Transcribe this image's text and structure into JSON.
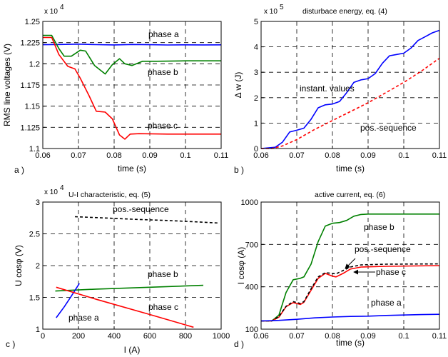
{
  "chart_data": [
    {
      "panel_label": "a )",
      "type": "line",
      "title": "",
      "multiplier": "x 10",
      "multiplier_exp": "4",
      "xlabel": "time (s)",
      "ylabel": "RMS line voltages (V)",
      "xlim": [
        0.06,
        0.11
      ],
      "ylim": [
        1.1,
        1.25
      ],
      "xticks": [
        0.06,
        0.07,
        0.08,
        0.09,
        0.1,
        0.11
      ],
      "xticklabels": [
        "0.06",
        "0.07",
        "0.08",
        "0.09",
        "0.1",
        "0.11"
      ],
      "yticks": [
        1.1,
        1.125,
        1.15,
        1.175,
        1.2,
        1.225,
        1.25
      ],
      "yticklabels": [
        "1.1",
        "1.125",
        "1.15",
        "1.175",
        "1.2",
        "1.225",
        "1.25"
      ],
      "grid": true,
      "series": [
        {
          "name": "phase a",
          "color": "#0000ff",
          "dashed": false,
          "points": [
            [
              0.06,
              1.2225
            ],
            [
              0.065,
              1.2228
            ],
            [
              0.07,
              1.2232
            ],
            [
              0.075,
              1.2226
            ],
            [
              0.08,
              1.2223
            ],
            [
              0.085,
              1.2228
            ],
            [
              0.09,
              1.2225
            ],
            [
              0.095,
              1.2222
            ],
            [
              0.1,
              1.2224
            ],
            [
              0.105,
              1.2223
            ],
            [
              0.11,
              1.2224
            ]
          ]
        },
        {
          "name": "phase b",
          "color": "#008000",
          "dashed": false,
          "points": [
            [
              0.06,
              1.2335
            ],
            [
              0.0625,
              1.2335
            ],
            [
              0.0645,
              1.218
            ],
            [
              0.066,
              1.209
            ],
            [
              0.068,
              1.209
            ],
            [
              0.0705,
              1.216
            ],
            [
              0.072,
              1.215
            ],
            [
              0.0745,
              1.198
            ],
            [
              0.0775,
              1.188
            ],
            [
              0.0795,
              1.199
            ],
            [
              0.0815,
              1.206
            ],
            [
              0.083,
              1.2
            ],
            [
              0.085,
              1.198
            ],
            [
              0.088,
              1.203
            ],
            [
              0.092,
              1.203
            ],
            [
              0.1,
              1.2035
            ],
            [
              0.11,
              1.2035
            ]
          ]
        },
        {
          "name": "phase c",
          "color": "#ff0000",
          "dashed": false,
          "points": [
            [
              0.06,
              1.231
            ],
            [
              0.0625,
              1.231
            ],
            [
              0.0645,
              1.211
            ],
            [
              0.067,
              1.197
            ],
            [
              0.069,
              1.194
            ],
            [
              0.0705,
              1.183
            ],
            [
              0.073,
              1.162
            ],
            [
              0.075,
              1.144
            ],
            [
              0.0775,
              1.143
            ],
            [
              0.0795,
              1.135
            ],
            [
              0.0815,
              1.116
            ],
            [
              0.083,
              1.111
            ],
            [
              0.0845,
              1.117
            ],
            [
              0.087,
              1.1175
            ],
            [
              0.095,
              1.117
            ],
            [
              0.11,
              1.117
            ]
          ]
        }
      ],
      "annotations": [
        "phase a",
        "phase b",
        "phase c"
      ]
    },
    {
      "panel_label": "b )",
      "type": "line",
      "title": "disturbace energy, eq. (4)",
      "multiplier": "x 10",
      "multiplier_exp": "5",
      "xlabel": "time (s)",
      "ylabel": "Δ w (J)",
      "xlim": [
        0.06,
        0.11
      ],
      "ylim": [
        0,
        5
      ],
      "xticks": [
        0.06,
        0.07,
        0.08,
        0.09,
        0.1,
        0.11
      ],
      "xticklabels": [
        "0.06",
        "0.07",
        "0.08",
        "0.09",
        "0.1",
        "0.11"
      ],
      "yticks": [
        0,
        1,
        2,
        3,
        4,
        5
      ],
      "yticklabels": [
        "0",
        "1",
        "2",
        "3",
        "4",
        "5"
      ],
      "grid": true,
      "series": [
        {
          "name": "instant. values",
          "color": "#0000ff",
          "dashed": false,
          "points": [
            [
              0.06,
              0
            ],
            [
              0.064,
              0.05
            ],
            [
              0.066,
              0.25
            ],
            [
              0.068,
              0.65
            ],
            [
              0.07,
              0.72
            ],
            [
              0.072,
              0.8
            ],
            [
              0.074,
              1.15
            ],
            [
              0.076,
              1.6
            ],
            [
              0.078,
              1.72
            ],
            [
              0.08,
              1.75
            ],
            [
              0.082,
              1.85
            ],
            [
              0.084,
              2.2
            ],
            [
              0.086,
              2.6
            ],
            [
              0.088,
              2.7
            ],
            [
              0.09,
              2.75
            ],
            [
              0.092,
              2.95
            ],
            [
              0.094,
              3.35
            ],
            [
              0.096,
              3.65
            ],
            [
              0.098,
              3.7
            ],
            [
              0.1,
              3.75
            ],
            [
              0.102,
              3.95
            ],
            [
              0.104,
              4.25
            ],
            [
              0.106,
              4.4
            ],
            [
              0.108,
              4.55
            ],
            [
              0.11,
              4.65
            ]
          ]
        },
        {
          "name": "pos.-sequence",
          "color": "#ff0000",
          "dashed": true,
          "points": [
            [
              0.06,
              0
            ],
            [
              0.063,
              0
            ],
            [
              0.066,
              0.1
            ],
            [
              0.07,
              0.35
            ],
            [
              0.075,
              0.75
            ],
            [
              0.08,
              1.1
            ],
            [
              0.085,
              1.45
            ],
            [
              0.09,
              1.8
            ],
            [
              0.095,
              2.2
            ],
            [
              0.1,
              2.6
            ],
            [
              0.105,
              3.05
            ],
            [
              0.11,
              3.55
            ]
          ]
        }
      ],
      "annotations": [
        "instant. values",
        "pos.-sequence"
      ]
    },
    {
      "panel_label": "c )",
      "type": "line",
      "title": "U-I characteristic, eq. (5)",
      "multiplier": "x 10",
      "multiplier_exp": "4",
      "xlabel": "I (A)",
      "ylabel": "U cosφ (V)",
      "xlim": [
        0,
        1000
      ],
      "ylim": [
        1,
        3
      ],
      "xticks": [
        0,
        200,
        400,
        600,
        800,
        1000
      ],
      "xticklabels": [
        "0",
        "200",
        "400",
        "600",
        "800",
        "1000"
      ],
      "yticks": [
        1,
        1.5,
        2,
        2.5,
        3
      ],
      "yticklabels": [
        "1",
        "1.5",
        "2",
        "2.5",
        "3"
      ],
      "grid": true,
      "series": [
        {
          "name": "pos.-sequence",
          "color": "#000000",
          "dashed": true,
          "points": [
            [
              180,
              2.77
            ],
            [
              350,
              2.75
            ],
            [
              500,
              2.73
            ],
            [
              700,
              2.71
            ],
            [
              850,
              2.69
            ],
            [
              990,
              2.67
            ]
          ]
        },
        {
          "name": "phase b",
          "color": "#008000",
          "dashed": false,
          "points": [
            [
              70,
              1.6
            ],
            [
              300,
              1.63
            ],
            [
              600,
              1.66
            ],
            [
              900,
              1.69
            ]
          ]
        },
        {
          "name": "phase a",
          "color": "#0000ff",
          "dashed": false,
          "points": [
            [
              75,
              1.18
            ],
            [
              120,
              1.35
            ],
            [
              160,
              1.52
            ],
            [
              205,
              1.72
            ]
          ]
        },
        {
          "name": "phase c",
          "color": "#ff0000",
          "dashed": false,
          "points": [
            [
              75,
              1.66
            ],
            [
              300,
              1.47
            ],
            [
              600,
              1.23
            ],
            [
              845,
              1.03
            ]
          ]
        }
      ],
      "annotations": [
        "pos.-sequence",
        "phase b",
        "phase a",
        "phase c"
      ]
    },
    {
      "panel_label": "d )",
      "type": "line",
      "title": "active current, eq. (6)",
      "multiplier": "",
      "multiplier_exp": "",
      "xlabel": "time (s)",
      "ylabel": "I cosφ (A)",
      "xlim": [
        0.06,
        0.11
      ],
      "ylim": [
        100,
        1000
      ],
      "xticks": [
        0.06,
        0.07,
        0.08,
        0.09,
        0.1,
        0.11
      ],
      "xticklabels": [
        "0.06",
        "0.07",
        "0.08",
        "0.09",
        "0.1",
        "0.11"
      ],
      "yticks": [
        100,
        400,
        700,
        1000
      ],
      "yticklabels": [
        "100",
        "400",
        "700",
        "1000"
      ],
      "grid": true,
      "series": [
        {
          "name": "phase b",
          "color": "#008000",
          "dashed": false,
          "points": [
            [
              0.06,
              158
            ],
            [
              0.063,
              158
            ],
            [
              0.065,
              200
            ],
            [
              0.067,
              360
            ],
            [
              0.069,
              450
            ],
            [
              0.071,
              460
            ],
            [
              0.072,
              470
            ],
            [
              0.074,
              560
            ],
            [
              0.076,
              720
            ],
            [
              0.078,
              830
            ],
            [
              0.08,
              850
            ],
            [
              0.082,
              855
            ],
            [
              0.084,
              870
            ],
            [
              0.086,
              900
            ],
            [
              0.088,
              912
            ],
            [
              0.09,
              915
            ],
            [
              0.1,
              915
            ],
            [
              0.11,
              915
            ]
          ]
        },
        {
          "name": "phase c",
          "color": "#ff0000",
          "dashed": false,
          "points": [
            [
              0.06,
              158
            ],
            [
              0.063,
              158
            ],
            [
              0.065,
              185
            ],
            [
              0.067,
              260
            ],
            [
              0.069,
              288
            ],
            [
              0.071,
              275
            ],
            [
              0.072,
              290
            ],
            [
              0.074,
              375
            ],
            [
              0.076,
              460
            ],
            [
              0.078,
              495
            ],
            [
              0.08,
              475
            ],
            [
              0.081,
              470
            ],
            [
              0.083,
              495
            ],
            [
              0.085,
              525
            ],
            [
              0.088,
              540
            ],
            [
              0.095,
              545
            ],
            [
              0.11,
              550
            ]
          ]
        },
        {
          "name": "pos.-sequence",
          "color": "#000000",
          "dashed": true,
          "points": [
            [
              0.06,
              158
            ],
            [
              0.063,
              158
            ],
            [
              0.065,
              190
            ],
            [
              0.067,
              262
            ],
            [
              0.069,
              295
            ],
            [
              0.071,
              282
            ],
            [
              0.072,
              295
            ],
            [
              0.074,
              385
            ],
            [
              0.076,
              470
            ],
            [
              0.078,
              500
            ],
            [
              0.08,
              495
            ],
            [
              0.081,
              492
            ],
            [
              0.083,
              515
            ],
            [
              0.085,
              540
            ],
            [
              0.088,
              555
            ],
            [
              0.095,
              560
            ],
            [
              0.11,
              562
            ]
          ]
        },
        {
          "name": "phase a",
          "color": "#0000ff",
          "dashed": false,
          "points": [
            [
              0.06,
              158
            ],
            [
              0.065,
              162
            ],
            [
              0.07,
              170
            ],
            [
              0.075,
              180
            ],
            [
              0.08,
              186
            ],
            [
              0.085,
              190
            ],
            [
              0.09,
              192
            ],
            [
              0.095,
              197
            ],
            [
              0.1,
              200
            ],
            [
              0.105,
              203
            ],
            [
              0.11,
              205
            ]
          ]
        }
      ],
      "annotations": [
        "phase b",
        "pos.-sequence",
        "phase c",
        "phase a"
      ]
    }
  ]
}
